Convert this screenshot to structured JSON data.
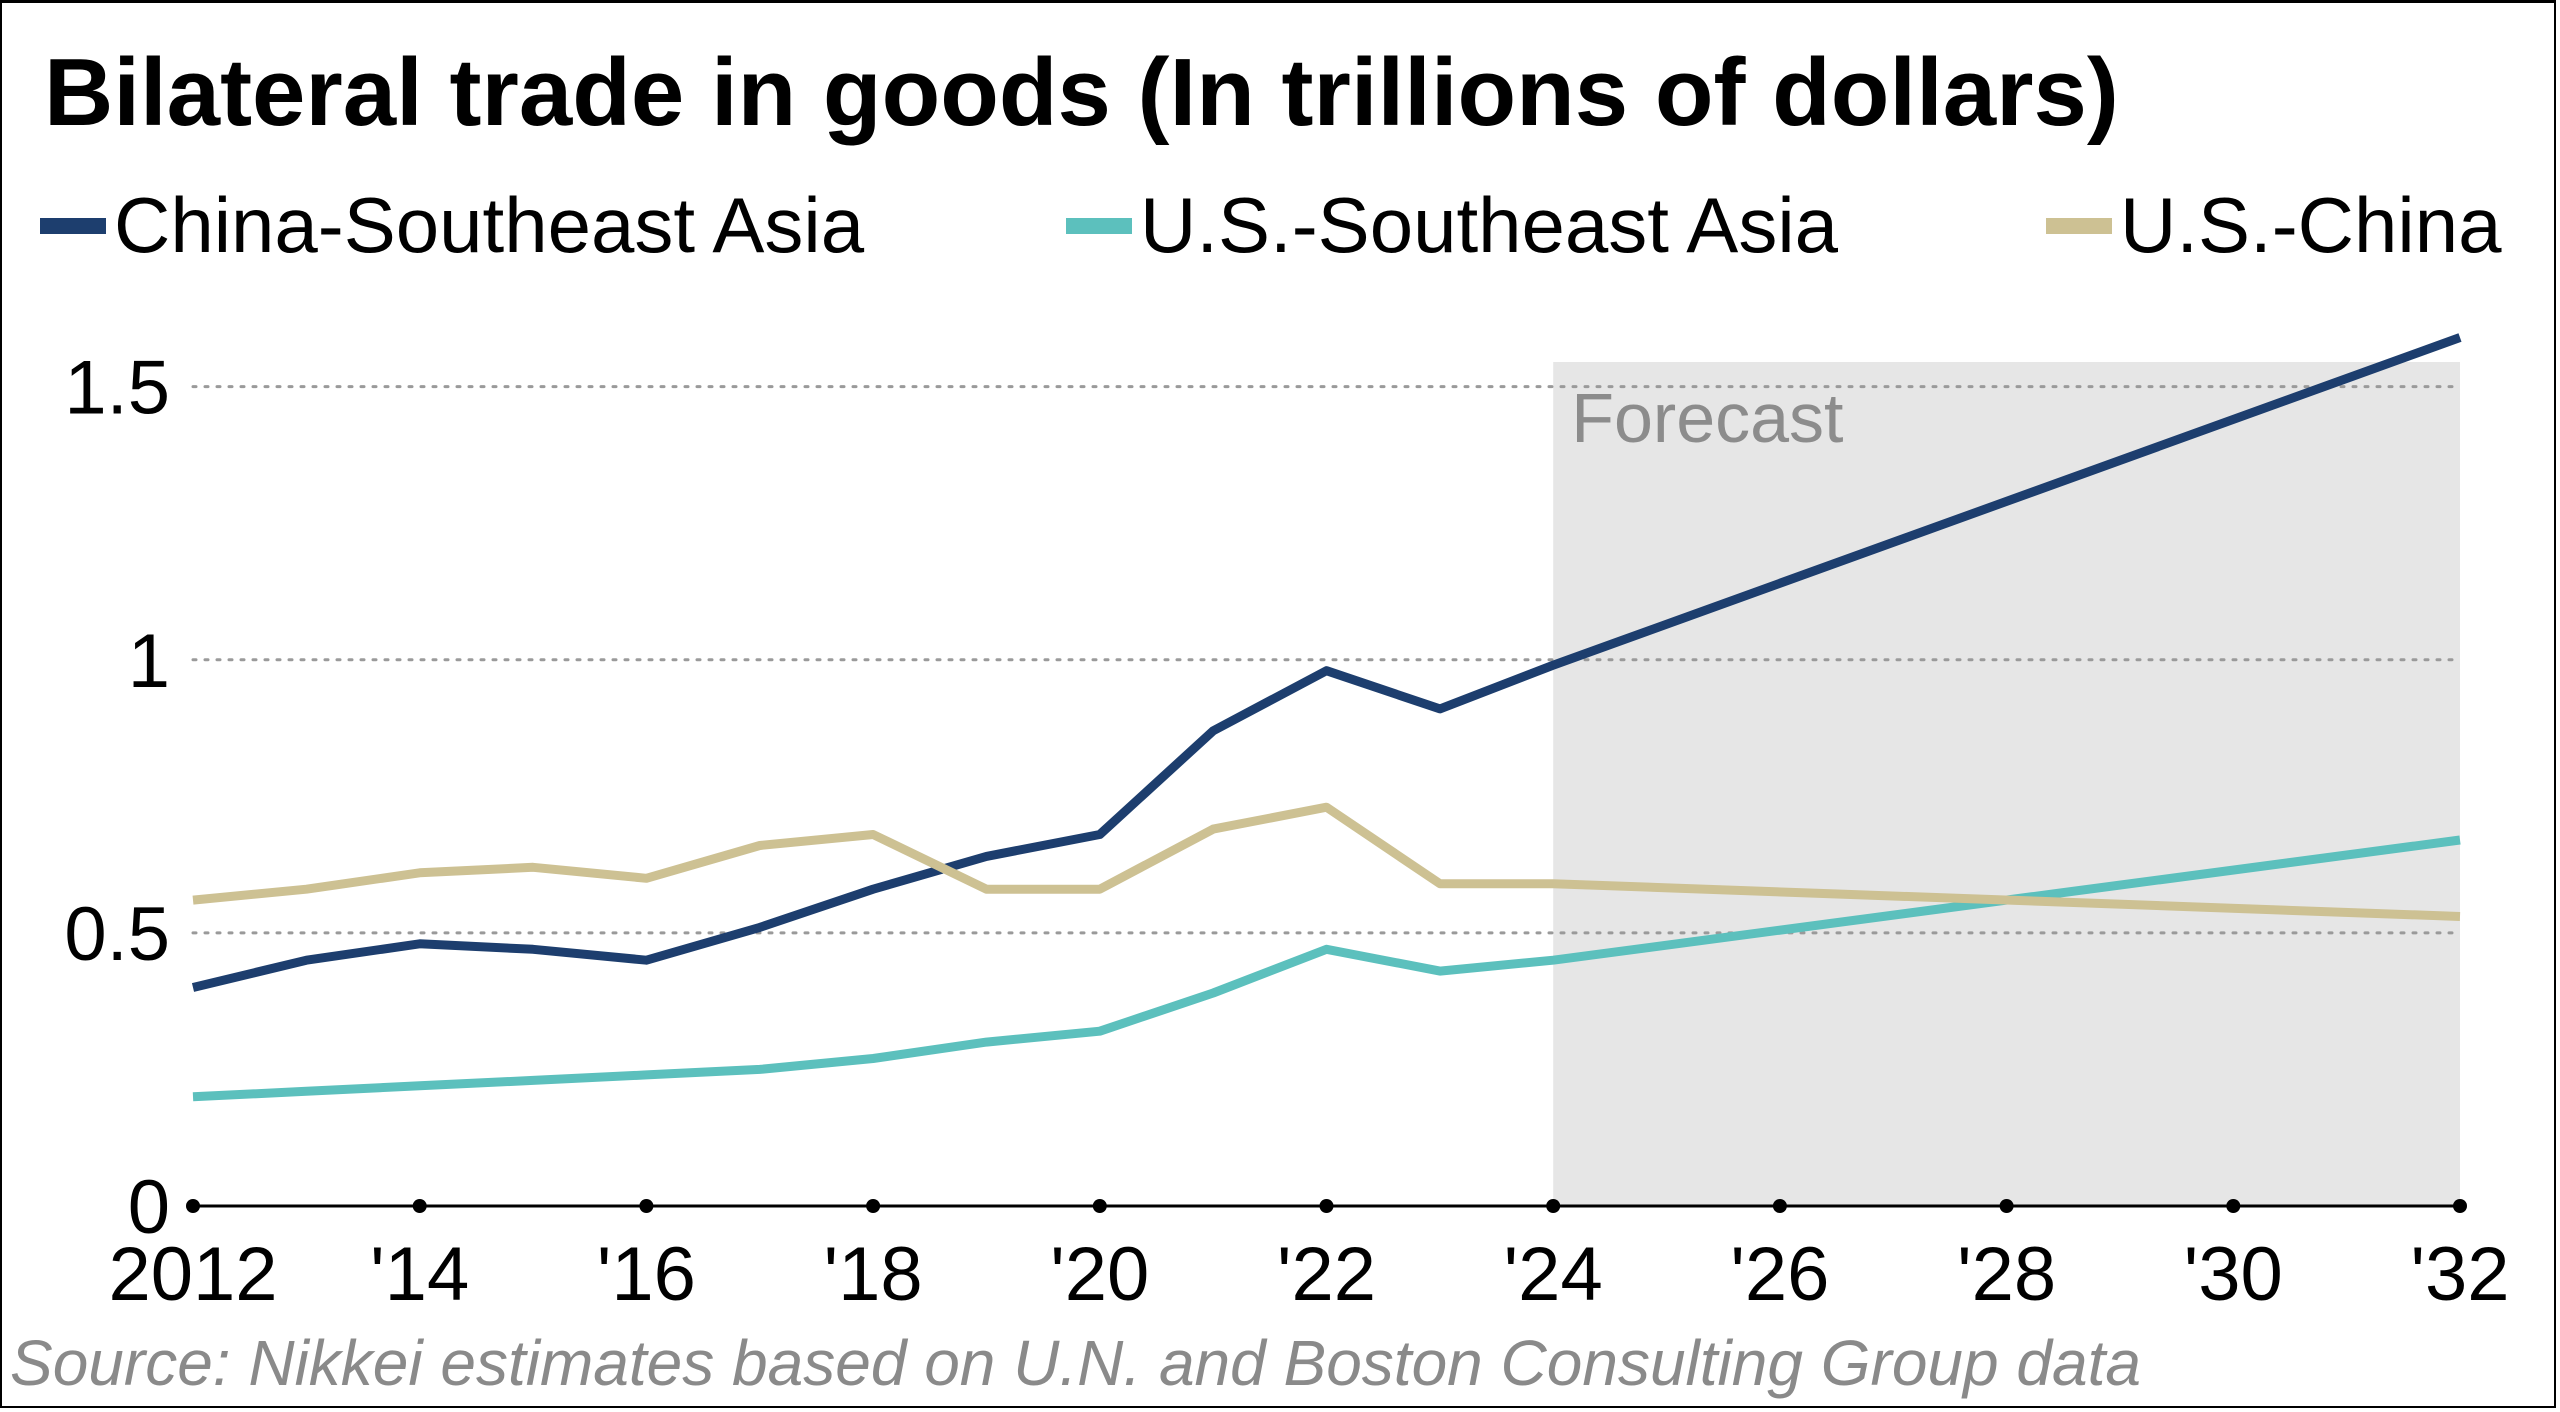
{
  "title": "Bilateral trade in goods (In trillions of dollars)",
  "source": "Source: Nikkei estimates based on U.N. and Boston Consulting Group data",
  "chart_data": {
    "type": "line",
    "title": "Bilateral trade in goods (In trillions of dollars)",
    "x": [
      2012,
      2013,
      2014,
      2015,
      2016,
      2017,
      2018,
      2019,
      2020,
      2021,
      2022,
      2023,
      2024,
      2032
    ],
    "x_ticks": [
      2012,
      2014,
      2016,
      2018,
      2020,
      2022,
      2024,
      2026,
      2028,
      2030,
      2032
    ],
    "x_tick_labels": [
      "2012",
      "'14",
      "'16",
      "'18",
      "'20",
      "'22",
      "'24",
      "'26",
      "'28",
      "'30",
      "'32"
    ],
    "y_ticks": [
      0,
      0.5,
      1,
      1.5
    ],
    "y_tick_labels": [
      "0",
      "0.5",
      "1",
      "1.5"
    ],
    "ylim": [
      0,
      1.6
    ],
    "xlim": [
      2012,
      2032
    ],
    "grid": "horizontal dotted",
    "legend_position": "top",
    "forecast": {
      "label": "Forecast",
      "from": 2024,
      "to": 2032,
      "color": "#e6e6e6"
    },
    "series": [
      {
        "name": "China-Southeast Asia",
        "color": "#1d3e6e",
        "values": [
          0.4,
          0.45,
          0.48,
          0.47,
          0.45,
          0.51,
          0.58,
          0.64,
          0.68,
          0.87,
          0.98,
          0.91,
          0.99,
          1.59
        ]
      },
      {
        "name": "U.S.-Southeast Asia",
        "color": "#5cc0bd",
        "values": [
          0.2,
          0.21,
          0.22,
          0.23,
          0.24,
          0.25,
          0.27,
          0.3,
          0.32,
          0.39,
          0.47,
          0.43,
          0.45,
          0.67
        ]
      },
      {
        "name": "U.S.-China",
        "color": "#cdc193",
        "values": [
          0.56,
          0.58,
          0.61,
          0.62,
          0.6,
          0.66,
          0.68,
          0.58,
          0.58,
          0.69,
          0.73,
          0.59,
          0.59,
          0.53
        ]
      }
    ]
  }
}
